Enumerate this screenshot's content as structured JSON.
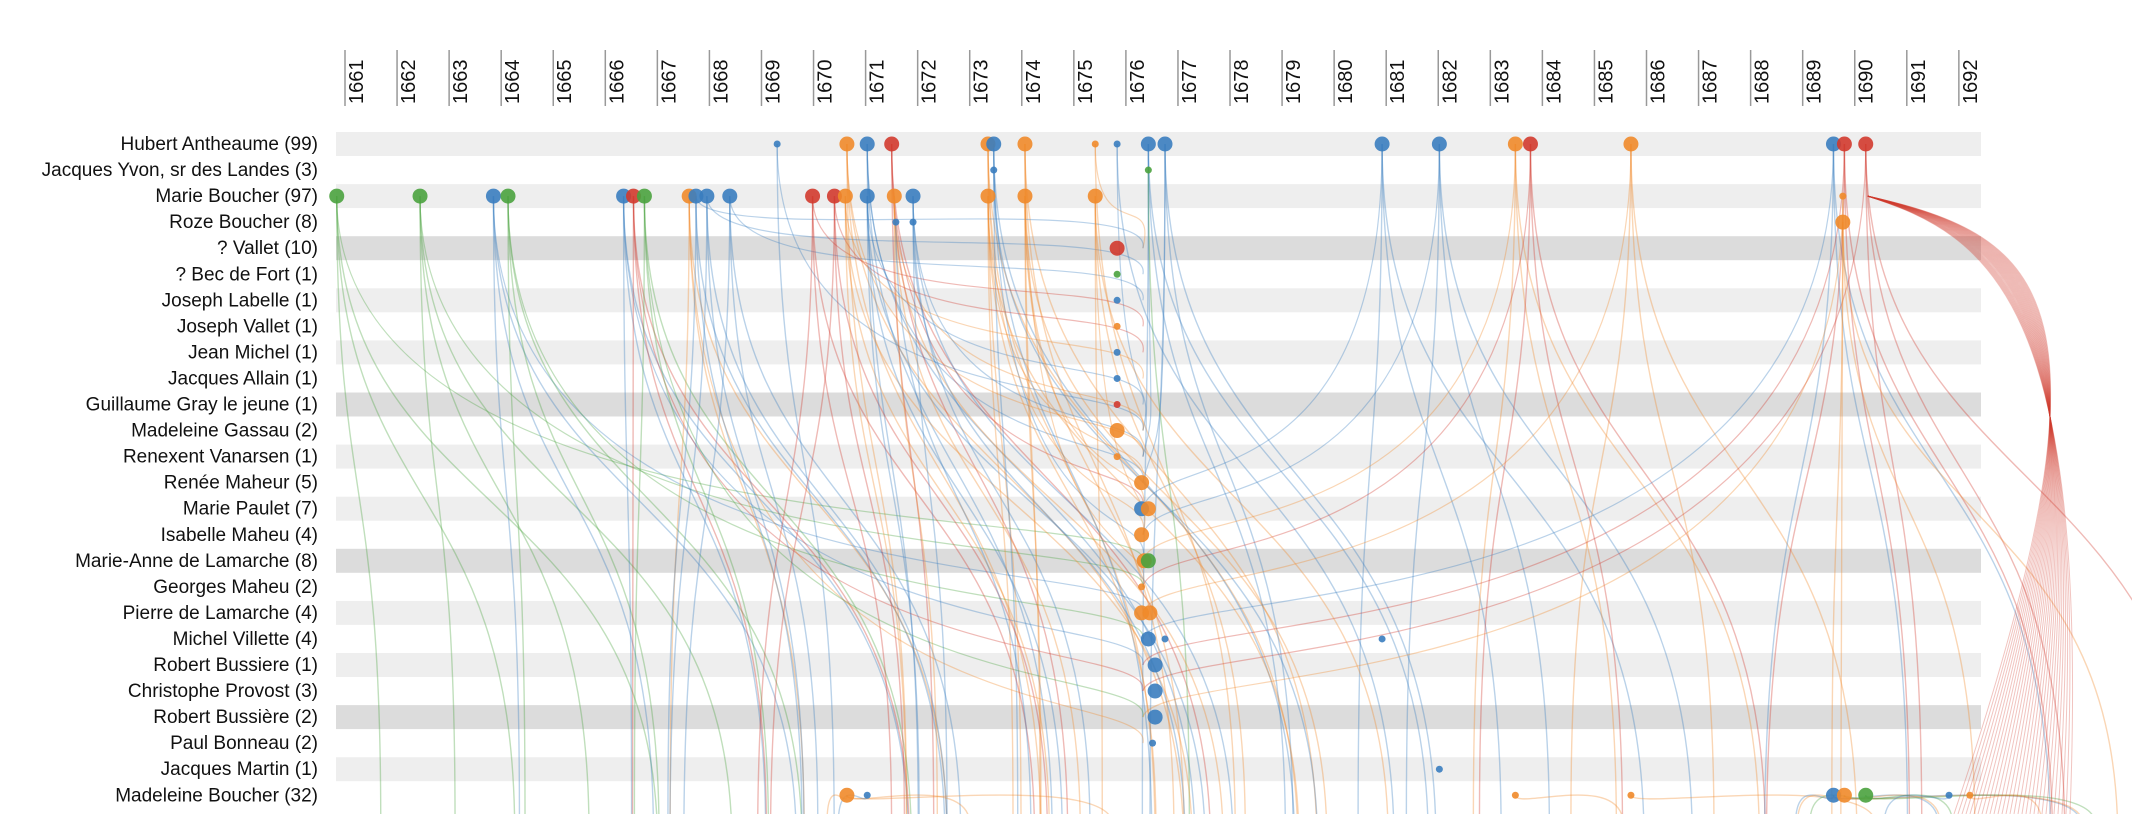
{
  "years": [
    1661,
    1662,
    1663,
    1664,
    1665,
    1666,
    1667,
    1668,
    1669,
    1670,
    1671,
    1672,
    1673,
    1674,
    1675,
    1676,
    1677,
    1678,
    1679,
    1680,
    1681,
    1682,
    1683,
    1684,
    1685,
    1686,
    1687,
    1688,
    1689,
    1690,
    1691,
    1692
  ],
  "colors": {
    "blue": "#3a7dbf",
    "orange": "#f08a2a",
    "red": "#d13a2e",
    "green": "#4aa23e"
  },
  "people": [
    {
      "name": "Hubert Antheaume (99)",
      "events": [
        {
          "year": 1669.09,
          "color": "blue",
          "small": true
        },
        {
          "year": 1670.43,
          "color": "orange"
        },
        {
          "year": 1670.82,
          "color": "blue"
        },
        {
          "year": 1671.29,
          "color": "red"
        },
        {
          "year": 1673.14,
          "color": "orange"
        },
        {
          "year": 1673.25,
          "color": "blue"
        },
        {
          "year": 1673.85,
          "color": "orange"
        },
        {
          "year": 1675.2,
          "color": "orange",
          "small": true
        },
        {
          "year": 1675.62,
          "color": "blue",
          "small": true
        },
        {
          "year": 1676.22,
          "color": "blue"
        },
        {
          "year": 1676.54,
          "color": "blue"
        },
        {
          "year": 1680.71,
          "color": "blue"
        },
        {
          "year": 1681.81,
          "color": "blue"
        },
        {
          "year": 1683.27,
          "color": "orange"
        },
        {
          "year": 1683.56,
          "color": "red"
        },
        {
          "year": 1685.49,
          "color": "orange"
        },
        {
          "year": 1689.38,
          "color": "blue"
        },
        {
          "year": 1689.59,
          "color": "red"
        },
        {
          "year": 1690.0,
          "color": "red"
        }
      ]
    },
    {
      "name": "Jacques Yvon, sr des Landes (3)",
      "events": [
        {
          "year": 1673.25,
          "color": "blue",
          "small": true
        },
        {
          "year": 1676.22,
          "color": "green",
          "small": true
        }
      ]
    },
    {
      "name": "Marie Boucher (97)",
      "events": [
        {
          "year": 1660.63,
          "color": "green"
        },
        {
          "year": 1662.23,
          "color": "green"
        },
        {
          "year": 1663.64,
          "color": "blue"
        },
        {
          "year": 1663.92,
          "color": "green"
        },
        {
          "year": 1666.14,
          "color": "blue"
        },
        {
          "year": 1666.33,
          "color": "red"
        },
        {
          "year": 1666.54,
          "color": "green"
        },
        {
          "year": 1667.4,
          "color": "orange"
        },
        {
          "year": 1667.53,
          "color": "blue"
        },
        {
          "year": 1667.74,
          "color": "blue"
        },
        {
          "year": 1668.18,
          "color": "blue"
        },
        {
          "year": 1669.77,
          "color": "red"
        },
        {
          "year": 1670.19,
          "color": "red"
        },
        {
          "year": 1670.4,
          "color": "orange"
        },
        {
          "year": 1670.82,
          "color": "blue"
        },
        {
          "year": 1671.34,
          "color": "orange"
        },
        {
          "year": 1671.7,
          "color": "blue"
        },
        {
          "year": 1673.14,
          "color": "orange"
        },
        {
          "year": 1673.85,
          "color": "orange"
        },
        {
          "year": 1675.2,
          "color": "orange"
        },
        {
          "year": 1689.56,
          "color": "orange",
          "small": true
        }
      ]
    },
    {
      "name": "Roze Boucher (8)",
      "events": [
        {
          "year": 1671.37,
          "color": "blue",
          "small": true
        },
        {
          "year": 1671.7,
          "color": "blue",
          "small": true
        },
        {
          "year": 1689.56,
          "color": "orange"
        }
      ]
    },
    {
      "name": "? Vallet (10)",
      "events": [
        {
          "year": 1675.62,
          "color": "red"
        }
      ]
    },
    {
      "name": "? Bec de Fort (1)",
      "events": [
        {
          "year": 1675.62,
          "color": "green",
          "small": true
        }
      ]
    },
    {
      "name": "Joseph Labelle (1)",
      "events": [
        {
          "year": 1675.62,
          "color": "blue",
          "small": true
        }
      ]
    },
    {
      "name": "Joseph Vallet (1)",
      "events": [
        {
          "year": 1675.62,
          "color": "orange",
          "small": true
        }
      ]
    },
    {
      "name": "Jean Michel (1)",
      "events": [
        {
          "year": 1675.62,
          "color": "blue",
          "small": true
        }
      ]
    },
    {
      "name": "Jacques Allain (1)",
      "events": [
        {
          "year": 1675.62,
          "color": "blue",
          "small": true
        }
      ]
    },
    {
      "name": "Guillaume Gray le jeune (1)",
      "events": [
        {
          "year": 1675.62,
          "color": "red",
          "small": true
        }
      ]
    },
    {
      "name": "Madeleine Gassau (2)",
      "events": [
        {
          "year": 1675.62,
          "color": "orange"
        }
      ]
    },
    {
      "name": "Renexent Vanarsen (1)",
      "events": [
        {
          "year": 1675.62,
          "color": "orange",
          "small": true
        }
      ]
    },
    {
      "name": "Renée Maheur (5)",
      "events": [
        {
          "year": 1676.09,
          "color": "orange"
        }
      ]
    },
    {
      "name": "Marie Paulet (7)",
      "events": [
        {
          "year": 1676.09,
          "color": "blue"
        },
        {
          "year": 1676.22,
          "color": "orange"
        }
      ]
    },
    {
      "name": "Isabelle Maheu (4)",
      "events": [
        {
          "year": 1676.09,
          "color": "orange"
        }
      ]
    },
    {
      "name": "Marie-Anne de Lamarche (8)",
      "events": [
        {
          "year": 1676.14,
          "color": "orange"
        },
        {
          "year": 1676.22,
          "color": "green"
        }
      ]
    },
    {
      "name": "Georges Maheu (2)",
      "events": [
        {
          "year": 1676.09,
          "color": "orange",
          "small": true
        }
      ]
    },
    {
      "name": "Pierre de Lamarche (4)",
      "events": [
        {
          "year": 1676.09,
          "color": "orange"
        },
        {
          "year": 1676.25,
          "color": "orange"
        }
      ]
    },
    {
      "name": "Michel Villette (4)",
      "events": [
        {
          "year": 1676.22,
          "color": "blue"
        },
        {
          "year": 1676.54,
          "color": "blue",
          "small": true
        },
        {
          "year": 1680.71,
          "color": "blue",
          "small": true
        }
      ]
    },
    {
      "name": "Robert Bussiere (1)",
      "events": [
        {
          "year": 1676.35,
          "color": "blue"
        }
      ]
    },
    {
      "name": "Christophe Provost (3)",
      "events": [
        {
          "year": 1676.35,
          "color": "blue"
        }
      ]
    },
    {
      "name": "Robert Bussière (2)",
      "events": [
        {
          "year": 1676.35,
          "color": "blue"
        }
      ]
    },
    {
      "name": "Paul Bonneau (2)",
      "events": [
        {
          "year": 1676.3,
          "color": "blue",
          "small": true
        }
      ]
    },
    {
      "name": "Jacques Martin (1)",
      "events": [
        {
          "year": 1681.81,
          "color": "blue",
          "small": true
        }
      ]
    },
    {
      "name": "Madeleine Boucher (32)",
      "events": [
        {
          "year": 1670.43,
          "color": "orange"
        },
        {
          "year": 1670.82,
          "color": "blue",
          "small": true
        },
        {
          "year": 1683.27,
          "color": "orange",
          "small": true
        },
        {
          "year": 1685.49,
          "color": "orange",
          "small": true
        },
        {
          "year": 1689.38,
          "color": "blue"
        },
        {
          "year": 1689.59,
          "color": "orange"
        },
        {
          "year": 1690.0,
          "color": "green"
        },
        {
          "year": 1691.6,
          "color": "blue",
          "small": true
        },
        {
          "year": 1692.0,
          "color": "orange",
          "small": true
        }
      ]
    }
  ]
}
